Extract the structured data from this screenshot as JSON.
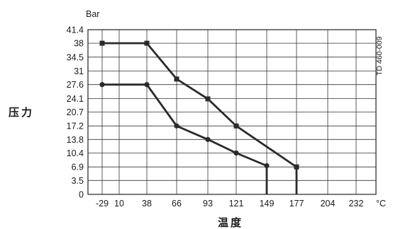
{
  "chart_data": {
    "type": "line",
    "xlabel": "温度",
    "ylabel": "压力",
    "y_unit": "Bar",
    "x_unit": "°C",
    "figure_code": "TD 460-009",
    "x_ticks": [
      "-29",
      "10",
      "38",
      "66",
      "93",
      "121",
      "149",
      "177",
      "204",
      "232"
    ],
    "y_ticks": [
      "0",
      "3.5",
      "6.9",
      "10.4",
      "13.8",
      "17.2",
      "20.7",
      "24.1",
      "27.6",
      "31",
      "34.5",
      "38",
      "41.4"
    ],
    "xlim": [
      -29,
      260
    ],
    "ylim": [
      0,
      41.4
    ],
    "grid": true,
    "series": [
      {
        "marker": "square",
        "x": [
          -29,
          38,
          66,
          93,
          121,
          177,
          177
        ],
        "y": [
          38,
          38,
          29,
          24,
          17.2,
          6.9,
          0
        ]
      },
      {
        "marker": "circle",
        "x": [
          -29,
          38,
          66,
          93,
          121,
          149,
          149
        ],
        "y": [
          27.6,
          27.6,
          17.2,
          13.8,
          10.4,
          7.2,
          0
        ]
      }
    ]
  }
}
